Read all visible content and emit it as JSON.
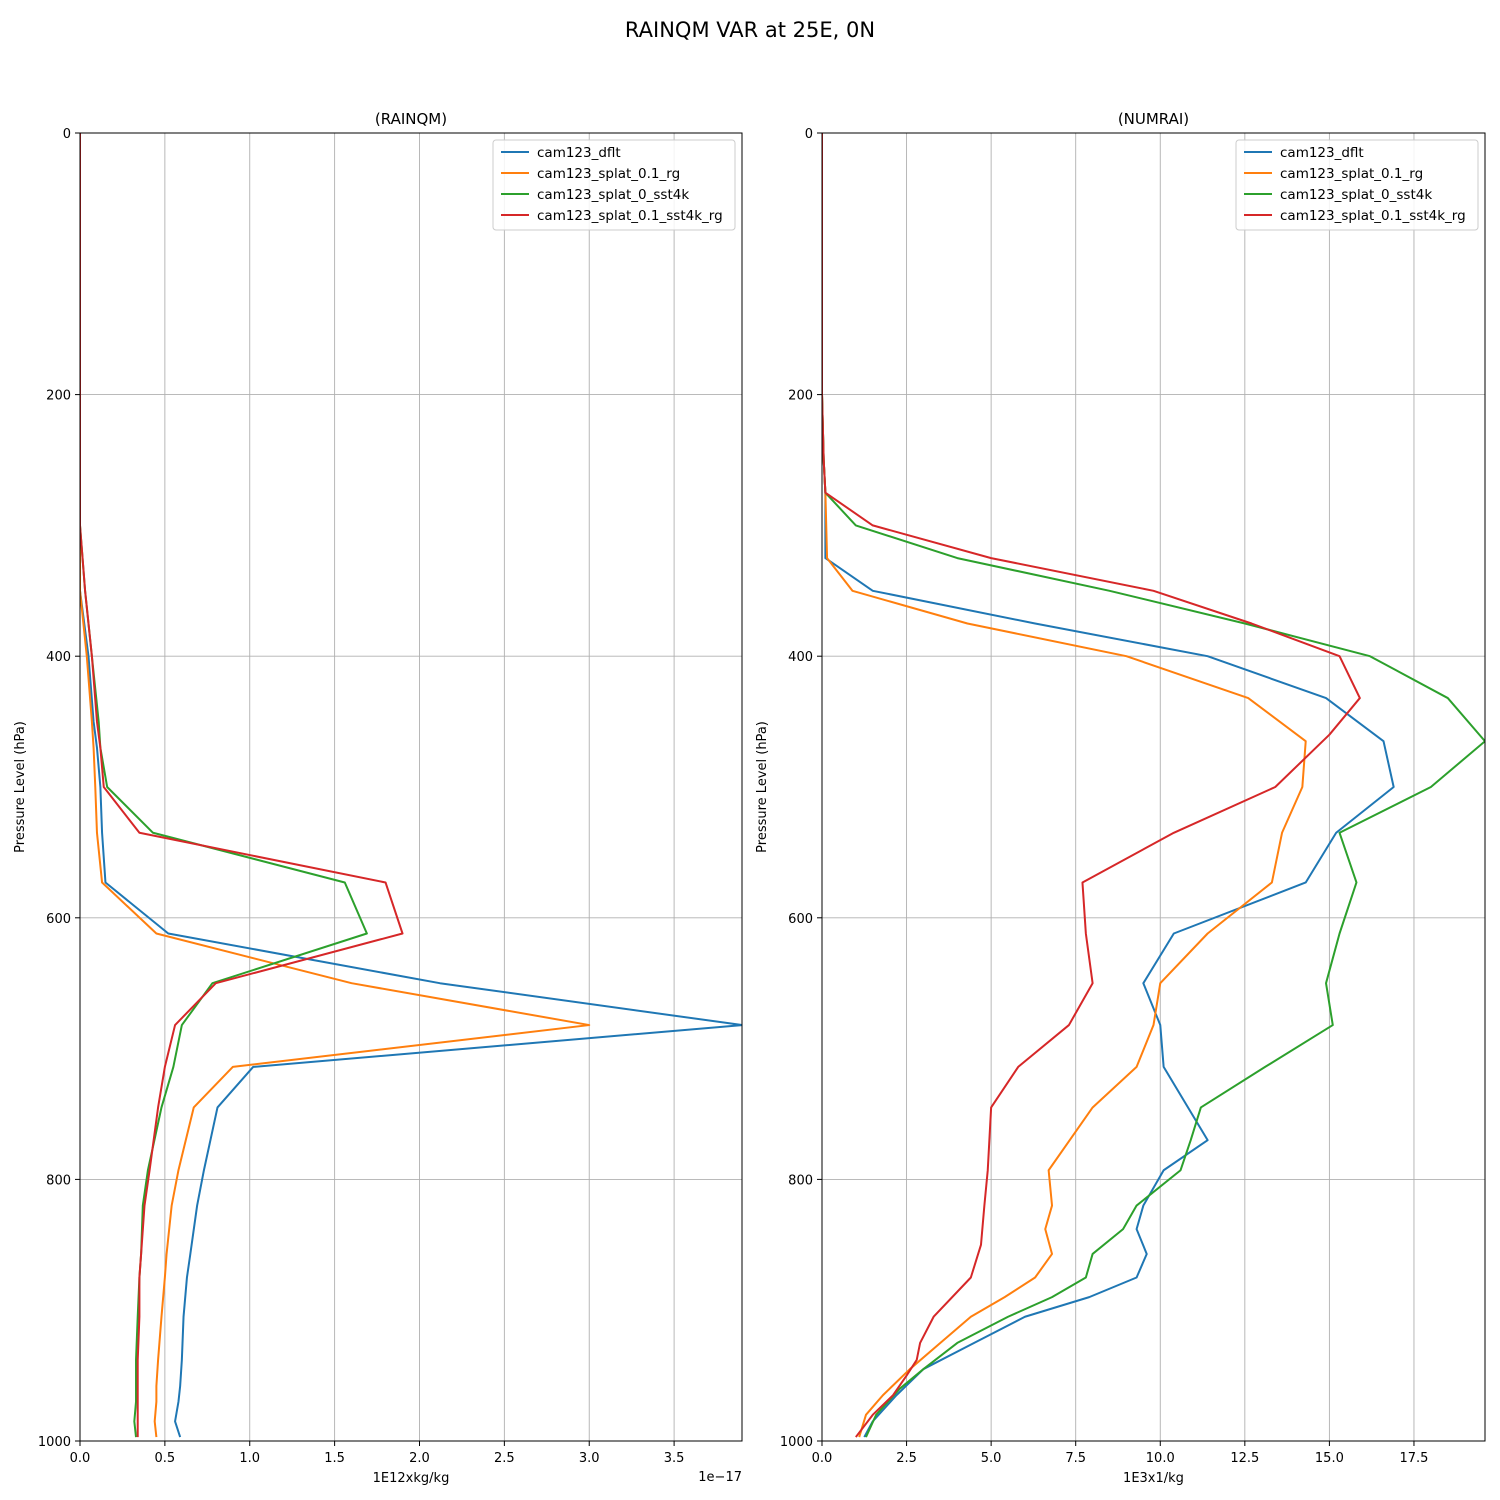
{
  "figure": {
    "suptitle": "RAINQM VAR at 25E, 0N"
  },
  "colors": {
    "cam123_dflt": "#1f77b4",
    "cam123_splat_0.1_rg": "#ff7f0e",
    "cam123_splat_0_sst4k": "#2ca02c",
    "cam123_splat_0.1_sst4k_rg": "#d62728"
  },
  "chart_data": [
    {
      "type": "line",
      "title": "(RAINQM)",
      "xlabel": "1E12xkg/kg",
      "ylabel": "Pressure Level (hPa)",
      "x_offset_text": "1e−17",
      "xlim": [
        0,
        3.9
      ],
      "ylim": [
        1000,
        0
      ],
      "y_inverted": true,
      "xticks": [
        0,
        0.5,
        1.0,
        1.5,
        2.0,
        2.5,
        3.0,
        3.5
      ],
      "xtick_labels": [
        "0.0",
        "0.5",
        "1.0",
        "1.5",
        "2.0",
        "2.5",
        "3.0",
        "3.5"
      ],
      "yticks": [
        0,
        200,
        400,
        600,
        800,
        1000
      ],
      "ytick_labels": [
        "0",
        "200",
        "400",
        "600",
        "800",
        "1000"
      ],
      "grid": true,
      "legend": "top-right",
      "series": [
        {
          "name": "cam123_dflt",
          "points": [
            [
              0,
              0
            ],
            [
              0,
              300
            ],
            [
              0,
              350
            ],
            [
              0.05,
              400
            ],
            [
              0.08,
              450
            ],
            [
              0.1,
              470
            ],
            [
              0.12,
              500
            ],
            [
              0.13,
              535
            ],
            [
              0.15,
              573
            ],
            [
              0.52,
              612
            ],
            [
              2.12,
              650
            ],
            [
              3.9,
              682
            ],
            [
              1.02,
              714
            ],
            [
              0.81,
              745
            ],
            [
              0.73,
              793
            ],
            [
              0.69,
              820
            ],
            [
              0.65,
              857
            ],
            [
              0.63,
              875
            ],
            [
              0.61,
              905
            ],
            [
              0.6,
              938
            ],
            [
              0.59,
              958
            ],
            [
              0.58,
              970
            ],
            [
              0.56,
              985
            ],
            [
              0.59,
              997
            ]
          ]
        },
        {
          "name": "cam123_splat_0.1_rg",
          "points": [
            [
              0,
              0
            ],
            [
              0,
              300
            ],
            [
              0,
              350
            ],
            [
              0.04,
              400
            ],
            [
              0.07,
              450
            ],
            [
              0.08,
              470
            ],
            [
              0.09,
              500
            ],
            [
              0.1,
              535
            ],
            [
              0.13,
              573
            ],
            [
              0.45,
              612
            ],
            [
              1.6,
              650
            ],
            [
              3.0,
              682
            ],
            [
              0.9,
              714
            ],
            [
              0.67,
              745
            ],
            [
              0.58,
              793
            ],
            [
              0.54,
              820
            ],
            [
              0.51,
              857
            ],
            [
              0.5,
              875
            ],
            [
              0.48,
              905
            ],
            [
              0.46,
              938
            ],
            [
              0.45,
              958
            ],
            [
              0.45,
              970
            ],
            [
              0.44,
              985
            ],
            [
              0.45,
              997
            ]
          ]
        },
        {
          "name": "cam123_splat_0_sst4k",
          "points": [
            [
              0,
              0
            ],
            [
              0,
              300
            ],
            [
              0.03,
              350
            ],
            [
              0.07,
              400
            ],
            [
              0.11,
              450
            ],
            [
              0.12,
              470
            ],
            [
              0.16,
              500
            ],
            [
              0.43,
              535
            ],
            [
              1.56,
              573
            ],
            [
              1.69,
              612
            ],
            [
              0.78,
              650
            ],
            [
              0.6,
              682
            ],
            [
              0.55,
              714
            ],
            [
              0.48,
              745
            ],
            [
              0.4,
              793
            ],
            [
              0.37,
              820
            ],
            [
              0.36,
              857
            ],
            [
              0.35,
              875
            ],
            [
              0.34,
              905
            ],
            [
              0.33,
              938
            ],
            [
              0.33,
              958
            ],
            [
              0.33,
              970
            ],
            [
              0.32,
              985
            ],
            [
              0.33,
              997
            ]
          ]
        },
        {
          "name": "cam123_splat_0.1_sst4k_rg",
          "points": [
            [
              0,
              0
            ],
            [
              0,
              300
            ],
            [
              0.03,
              350
            ],
            [
              0.07,
              400
            ],
            [
              0.1,
              450
            ],
            [
              0.12,
              470
            ],
            [
              0.14,
              500
            ],
            [
              0.35,
              535
            ],
            [
              1.8,
              573
            ],
            [
              1.9,
              612
            ],
            [
              0.8,
              650
            ],
            [
              0.56,
              682
            ],
            [
              0.5,
              714
            ],
            [
              0.46,
              745
            ],
            [
              0.41,
              793
            ],
            [
              0.38,
              820
            ],
            [
              0.36,
              857
            ],
            [
              0.35,
              875
            ],
            [
              0.35,
              905
            ],
            [
              0.34,
              938
            ],
            [
              0.34,
              958
            ],
            [
              0.34,
              970
            ],
            [
              0.34,
              985
            ],
            [
              0.34,
              997
            ]
          ]
        }
      ]
    },
    {
      "type": "line",
      "title": "(NUMRAI)",
      "xlabel": "1E3x1/kg",
      "ylabel": "Pressure Level (hPa)",
      "xlim": [
        0,
        19.6
      ],
      "ylim": [
        1000,
        0
      ],
      "y_inverted": true,
      "xticks": [
        0,
        2.5,
        5.0,
        7.5,
        10.0,
        12.5,
        15.0,
        17.5
      ],
      "xtick_labels": [
        "0.0",
        "2.5",
        "5.0",
        "7.5",
        "10.0",
        "12.5",
        "15.0",
        "17.5"
      ],
      "yticks": [
        0,
        200,
        400,
        600,
        800,
        1000
      ],
      "ytick_labels": [
        "0",
        "200",
        "400",
        "600",
        "800",
        "1000"
      ],
      "grid": true,
      "legend": "top-right",
      "series": [
        {
          "name": "cam123_dflt",
          "points": [
            [
              0,
              0
            ],
            [
              0,
              200
            ],
            [
              0.05,
              250
            ],
            [
              0.1,
              275
            ],
            [
              0.1,
              325
            ],
            [
              1.5,
              350
            ],
            [
              6.3,
              375
            ],
            [
              11.4,
              400
            ],
            [
              14.9,
              432
            ],
            [
              16.6,
              465
            ],
            [
              16.9,
              500
            ],
            [
              15.2,
              535
            ],
            [
              14.3,
              573
            ],
            [
              10.4,
              612
            ],
            [
              9.5,
              650
            ],
            [
              10.0,
              682
            ],
            [
              10.1,
              714
            ],
            [
              11.4,
              770
            ],
            [
              10.1,
              793
            ],
            [
              9.5,
              820
            ],
            [
              9.3,
              838
            ],
            [
              9.6,
              857
            ],
            [
              9.3,
              875
            ],
            [
              7.9,
              890
            ],
            [
              6.0,
              905
            ],
            [
              4.5,
              925
            ],
            [
              3.0,
              945
            ],
            [
              2.2,
              965
            ],
            [
              1.5,
              985
            ],
            [
              1.25,
              997
            ]
          ]
        },
        {
          "name": "cam123_splat_0.1_rg",
          "points": [
            [
              0,
              0
            ],
            [
              0,
              200
            ],
            [
              0.05,
              250
            ],
            [
              0.1,
              275
            ],
            [
              0.15,
              325
            ],
            [
              0.9,
              350
            ],
            [
              4.3,
              375
            ],
            [
              9.0,
              400
            ],
            [
              12.6,
              432
            ],
            [
              14.3,
              465
            ],
            [
              14.2,
              500
            ],
            [
              13.6,
              535
            ],
            [
              13.3,
              573
            ],
            [
              11.4,
              612
            ],
            [
              10.0,
              650
            ],
            [
              9.8,
              682
            ],
            [
              9.3,
              714
            ],
            [
              8.0,
              745
            ],
            [
              6.7,
              793
            ],
            [
              6.8,
              820
            ],
            [
              6.6,
              838
            ],
            [
              6.8,
              857
            ],
            [
              6.3,
              875
            ],
            [
              5.4,
              890
            ],
            [
              4.4,
              905
            ],
            [
              3.5,
              925
            ],
            [
              2.6,
              945
            ],
            [
              1.8,
              965
            ],
            [
              1.3,
              980
            ],
            [
              1.1,
              997
            ]
          ]
        },
        {
          "name": "cam123_splat_0_sst4k",
          "points": [
            [
              0,
              0
            ],
            [
              0,
              200
            ],
            [
              0.05,
              250
            ],
            [
              0.1,
              275
            ],
            [
              1.0,
              300
            ],
            [
              4.0,
              325
            ],
            [
              8.5,
              350
            ],
            [
              12.5,
              375
            ],
            [
              16.2,
              400
            ],
            [
              18.5,
              432
            ],
            [
              19.6,
              465
            ],
            [
              18.0,
              500
            ],
            [
              15.3,
              535
            ],
            [
              15.8,
              573
            ],
            [
              15.3,
              612
            ],
            [
              14.9,
              650
            ],
            [
              15.1,
              682
            ],
            [
              13.1,
              714
            ],
            [
              11.2,
              745
            ],
            [
              10.9,
              770
            ],
            [
              10.6,
              793
            ],
            [
              9.3,
              820
            ],
            [
              8.9,
              838
            ],
            [
              8.0,
              857
            ],
            [
              7.8,
              875
            ],
            [
              6.8,
              890
            ],
            [
              5.5,
              905
            ],
            [
              4.0,
              925
            ],
            [
              3.0,
              945
            ],
            [
              2.3,
              960
            ],
            [
              1.6,
              980
            ],
            [
              1.3,
              997
            ]
          ]
        },
        {
          "name": "cam123_splat_0.1_sst4k_rg",
          "points": [
            [
              0,
              0
            ],
            [
              0,
              200
            ],
            [
              0.05,
              250
            ],
            [
              0.1,
              275
            ],
            [
              1.5,
              300
            ],
            [
              5.0,
              325
            ],
            [
              9.8,
              350
            ],
            [
              12.7,
              375
            ],
            [
              15.3,
              400
            ],
            [
              15.9,
              432
            ],
            [
              15.0,
              460
            ],
            [
              13.4,
              500
            ],
            [
              10.4,
              535
            ],
            [
              7.7,
              573
            ],
            [
              7.8,
              612
            ],
            [
              8.0,
              650
            ],
            [
              7.3,
              682
            ],
            [
              5.8,
              714
            ],
            [
              5.0,
              745
            ],
            [
              4.9,
              793
            ],
            [
              4.8,
              820
            ],
            [
              4.7,
              850
            ],
            [
              4.4,
              875
            ],
            [
              3.3,
              905
            ],
            [
              2.9,
              925
            ],
            [
              2.8,
              938
            ],
            [
              2.5,
              950
            ],
            [
              2.1,
              965
            ],
            [
              1.5,
              980
            ],
            [
              1.0,
              997
            ]
          ]
        }
      ]
    }
  ]
}
